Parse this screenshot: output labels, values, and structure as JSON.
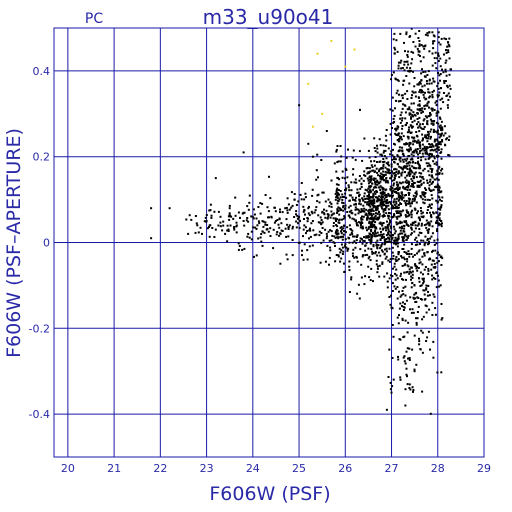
{
  "chart_data": {
    "type": "scatter",
    "title": "m33_u90o41",
    "corner_label": "PC",
    "xlabel": "F606W (PSF)",
    "ylabel": "F606W (PSF–APERTURE)",
    "xlim": [
      19.7,
      29.0
    ],
    "ylim": [
      -0.5,
      0.5
    ],
    "x_ticks": [
      20,
      21,
      22,
      23,
      24,
      25,
      26,
      27,
      28,
      29
    ],
    "y_ticks": [
      -0.4,
      -0.2,
      0,
      0.2,
      0.4
    ],
    "y_tick_labels": [
      "-0.4",
      "-0.2",
      "0",
      "0.2",
      "0.4"
    ],
    "grid": true,
    "colors": {
      "axis": "#1a1aa8",
      "text": "#2a2aa8",
      "points": "#000000",
      "highlight": "#e8d21a"
    },
    "series": [
      {
        "color": "#000000",
        "points": [
          [
            21.8,
            0.08
          ],
          [
            21.8,
            0.01
          ],
          [
            22.2,
            0.08
          ],
          [
            22.6,
            0.02
          ],
          [
            22.8,
            0.04
          ],
          [
            22.9,
            0.02
          ],
          [
            23.0,
            0.05
          ],
          [
            23.2,
            0.03
          ],
          [
            23.3,
            0.06
          ],
          [
            23.4,
            0.02
          ],
          [
            23.5,
            0.08
          ],
          [
            23.6,
            0.03
          ],
          [
            23.7,
            0.07
          ],
          [
            23.8,
            0.05
          ],
          [
            23.9,
            0.02
          ],
          [
            24.0,
            0.06
          ],
          [
            24.1,
            0.04
          ],
          [
            24.2,
            0.09
          ],
          [
            24.3,
            0.03
          ],
          [
            24.4,
            0.06
          ],
          [
            24.5,
            0.05
          ],
          [
            24.6,
            0.02
          ],
          [
            24.7,
            0.08
          ],
          [
            24.8,
            0.04
          ],
          [
            24.9,
            0.1
          ],
          [
            25.0,
            0.06
          ],
          [
            25.1,
            0.03
          ],
          [
            25.2,
            0.08
          ],
          [
            25.3,
            0.05
          ],
          [
            25.4,
            0.11
          ],
          [
            25.5,
            0.07
          ],
          [
            25.6,
            0.02
          ],
          [
            25.7,
            0.09
          ],
          [
            25.8,
            0.05
          ],
          [
            25.9,
            0.12
          ],
          [
            26.0,
            0.08
          ],
          [
            26.1,
            0.04
          ],
          [
            26.2,
            0.14
          ],
          [
            26.3,
            0.1
          ],
          [
            26.4,
            0.06
          ],
          [
            23.8,
            0.21
          ],
          [
            23.2,
            0.15
          ],
          [
            25.0,
            0.32
          ],
          [
            25.2,
            0.23
          ],
          [
            25.6,
            0.26
          ],
          [
            25.3,
            0.2
          ],
          [
            26.6,
            -0.09
          ],
          [
            26.8,
            -0.05
          ],
          [
            27.3,
            -0.38
          ],
          [
            26.9,
            -0.39
          ],
          [
            27.0,
            -0.35
          ],
          [
            27.5,
            -0.3
          ]
        ]
      },
      {
        "color": "#e8d21a",
        "points": [
          [
            25.2,
            0.37
          ],
          [
            25.4,
            0.44
          ],
          [
            25.7,
            0.47
          ],
          [
            26.0,
            0.41
          ],
          [
            26.2,
            0.45
          ],
          [
            25.5,
            0.3
          ],
          [
            25.3,
            0.27
          ]
        ]
      }
    ]
  }
}
